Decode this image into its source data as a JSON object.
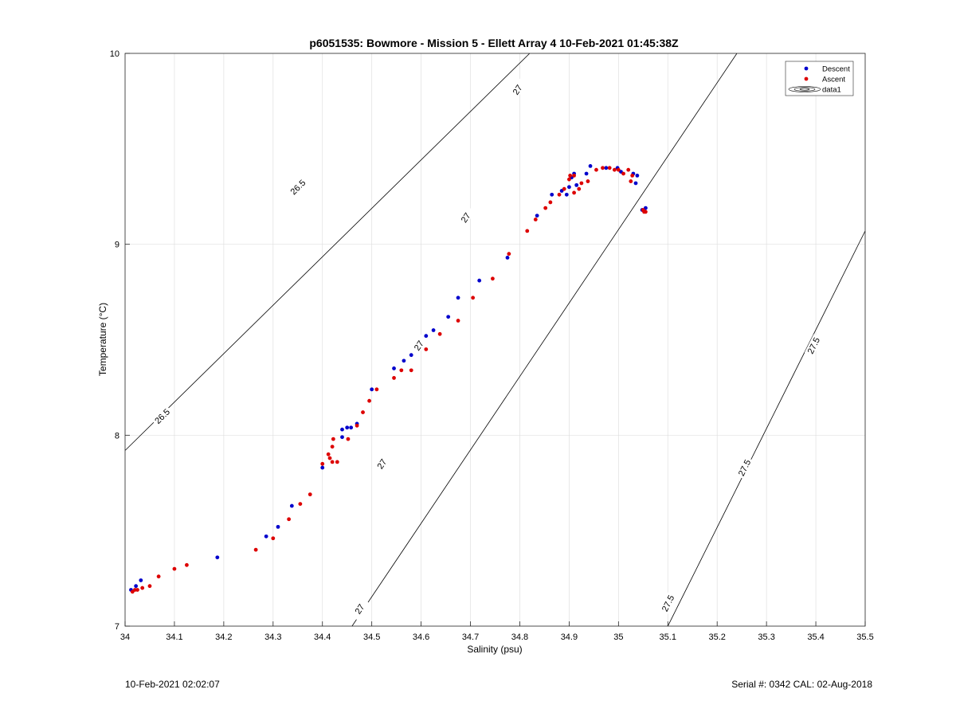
{
  "footer": {
    "timestamp": "10-Feb-2021 02:02:07",
    "serial": "Serial #: 0342  CAL: 02-Aug-2018"
  },
  "colors": {
    "descent": "#0000cc",
    "ascent": "#dd0000",
    "contour": "#000000",
    "grid": "#e0e0e0"
  },
  "chart_data": {
    "type": "scatter",
    "title": "p6051535: Bowmore - Mission 5 - Ellett Array 4 10-Feb-2021 01:45:38Z",
    "xlabel": "Salinity (psu)",
    "ylabel": "Temperature (°C)",
    "xlim": [
      34,
      35.5
    ],
    "ylim": [
      7,
      10
    ],
    "x_ticks": [
      "34",
      "34.1",
      "34.2",
      "34.3",
      "34.4",
      "34.5",
      "34.6",
      "34.7",
      "34.8",
      "34.9",
      "35",
      "35.1",
      "35.2",
      "35.3",
      "35.4",
      "35.5"
    ],
    "y_ticks": [
      "7",
      "8",
      "9",
      "10"
    ],
    "grid": true,
    "legend": {
      "placement": "top-right",
      "entries": [
        "Descent",
        "Ascent",
        "data1"
      ]
    },
    "series": [
      {
        "name": "Descent",
        "points": [
          [
            34.012,
            7.19
          ],
          [
            34.022,
            7.21
          ],
          [
            34.032,
            7.24
          ],
          [
            34.187,
            7.36
          ],
          [
            34.286,
            7.47
          ],
          [
            34.31,
            7.52
          ],
          [
            34.338,
            7.63
          ],
          [
            34.4,
            7.83
          ],
          [
            34.44,
            7.99
          ],
          [
            34.44,
            8.03
          ],
          [
            34.45,
            8.04
          ],
          [
            34.458,
            8.04
          ],
          [
            34.47,
            8.06
          ],
          [
            34.5,
            8.24
          ],
          [
            34.545,
            8.35
          ],
          [
            34.565,
            8.39
          ],
          [
            34.58,
            8.42
          ],
          [
            34.61,
            8.52
          ],
          [
            34.625,
            8.55
          ],
          [
            34.655,
            8.62
          ],
          [
            34.675,
            8.72
          ],
          [
            34.718,
            8.81
          ],
          [
            34.775,
            8.93
          ],
          [
            34.835,
            9.15
          ],
          [
            34.865,
            9.26
          ],
          [
            34.885,
            9.28
          ],
          [
            34.895,
            9.26
          ],
          [
            34.9,
            9.3
          ],
          [
            34.905,
            9.35
          ],
          [
            34.91,
            9.37
          ],
          [
            34.915,
            9.31
          ],
          [
            34.935,
            9.37
          ],
          [
            34.943,
            9.41
          ],
          [
            34.975,
            9.4
          ],
          [
            34.998,
            9.4
          ],
          [
            35.005,
            9.38
          ],
          [
            35.03,
            9.37
          ],
          [
            35.035,
            9.32
          ],
          [
            35.038,
            9.36
          ],
          [
            35.048,
            9.18
          ],
          [
            35.055,
            9.19
          ]
        ]
      },
      {
        "name": "Ascent",
        "points": [
          [
            34.015,
            7.18
          ],
          [
            34.02,
            7.19
          ],
          [
            34.025,
            7.19
          ],
          [
            34.035,
            7.2
          ],
          [
            34.05,
            7.21
          ],
          [
            34.068,
            7.26
          ],
          [
            34.1,
            7.3
          ],
          [
            34.125,
            7.32
          ],
          [
            34.265,
            7.4
          ],
          [
            34.3,
            7.46
          ],
          [
            34.332,
            7.56
          ],
          [
            34.355,
            7.64
          ],
          [
            34.375,
            7.69
          ],
          [
            34.4,
            7.85
          ],
          [
            34.412,
            7.9
          ],
          [
            34.415,
            7.88
          ],
          [
            34.42,
            7.94
          ],
          [
            34.422,
            7.98
          ],
          [
            34.42,
            7.86
          ],
          [
            34.43,
            7.86
          ],
          [
            34.452,
            7.98
          ],
          [
            34.47,
            8.05
          ],
          [
            34.482,
            8.12
          ],
          [
            34.495,
            8.18
          ],
          [
            34.51,
            8.24
          ],
          [
            34.545,
            8.3
          ],
          [
            34.56,
            8.34
          ],
          [
            34.58,
            8.34
          ],
          [
            34.61,
            8.45
          ],
          [
            34.638,
            8.53
          ],
          [
            34.675,
            8.6
          ],
          [
            34.705,
            8.72
          ],
          [
            34.745,
            8.82
          ],
          [
            34.778,
            8.95
          ],
          [
            34.815,
            9.07
          ],
          [
            34.832,
            9.13
          ],
          [
            34.852,
            9.19
          ],
          [
            34.862,
            9.22
          ],
          [
            34.88,
            9.26
          ],
          [
            34.89,
            9.29
          ],
          [
            34.9,
            9.34
          ],
          [
            34.902,
            9.36
          ],
          [
            34.91,
            9.27
          ],
          [
            34.91,
            9.36
          ],
          [
            34.92,
            9.29
          ],
          [
            34.925,
            9.32
          ],
          [
            34.938,
            9.33
          ],
          [
            34.955,
            9.39
          ],
          [
            34.968,
            9.4
          ],
          [
            34.982,
            9.4
          ],
          [
            34.992,
            9.39
          ],
          [
            35.0,
            9.39
          ],
          [
            35.01,
            9.37
          ],
          [
            35.02,
            9.39
          ],
          [
            35.025,
            9.33
          ],
          [
            35.028,
            9.36
          ],
          [
            35.05,
            9.18
          ],
          [
            35.052,
            9.17
          ],
          [
            35.055,
            9.17
          ]
        ]
      }
    ],
    "contours": [
      {
        "level": "26.5",
        "from": [
          34.0,
          7.92
        ],
        "to": [
          34.82,
          10.0
        ],
        "labels": [
          [
            34.075,
            8.1
          ],
          [
            34.35,
            9.3
          ],
          [
            34.62,
            10.45
          ]
        ]
      },
      {
        "level": "27",
        "from": [
          34.46,
          7.0
        ],
        "to": [
          35.24,
          10.0
        ],
        "labels": [
          [
            34.475,
            7.09
          ],
          [
            34.52,
            7.85
          ],
          [
            34.595,
            8.47
          ],
          [
            34.69,
            9.14
          ],
          [
            34.795,
            9.81
          ]
        ]
      },
      {
        "level": "27.5",
        "from": [
          35.1,
          7.0
        ],
        "to": [
          35.5,
          9.07
        ],
        "labels": [
          [
            35.1,
            7.12
          ],
          [
            35.255,
            7.83
          ],
          [
            35.395,
            8.47
          ]
        ]
      }
    ]
  }
}
